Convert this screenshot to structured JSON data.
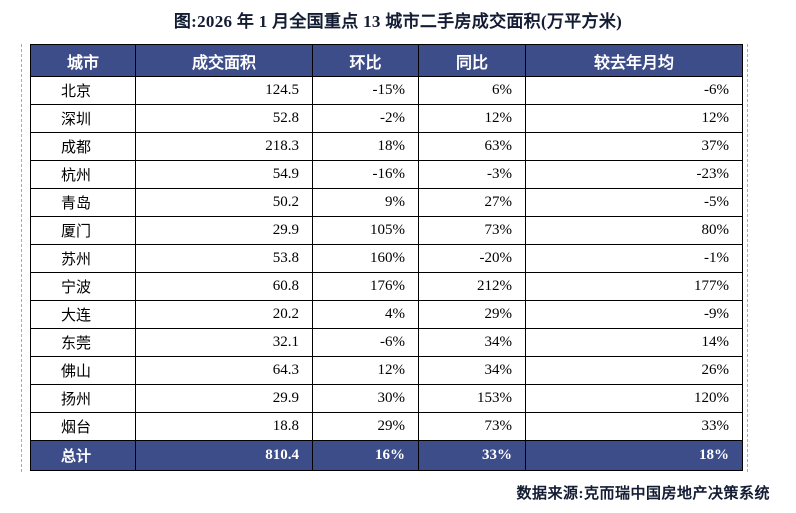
{
  "page": {
    "title": "图:2026 年 1 月全国重点 13 城市二手房成交面积(万平方米)",
    "source": "数据来源:克而瑞中国房地产决策系统"
  },
  "colors": {
    "header_bg": "#3d4d8a",
    "header_text": "#ffffff",
    "title_text": "#131c33",
    "table_border": "#000000",
    "guide_dash": "#a9aab0"
  },
  "table": {
    "headers": [
      "城市",
      "成交面积",
      "环比",
      "同比",
      "较去年月均"
    ],
    "rows": [
      {
        "city": "北京",
        "area": "124.5",
        "mom": "-15%",
        "yoy": "6%",
        "vs_avg": "-6%"
      },
      {
        "city": "深圳",
        "area": "52.8",
        "mom": "-2%",
        "yoy": "12%",
        "vs_avg": "12%"
      },
      {
        "city": "成都",
        "area": "218.3",
        "mom": "18%",
        "yoy": "63%",
        "vs_avg": "37%"
      },
      {
        "city": "杭州",
        "area": "54.9",
        "mom": "-16%",
        "yoy": "-3%",
        "vs_avg": "-23%"
      },
      {
        "city": "青岛",
        "area": "50.2",
        "mom": "9%",
        "yoy": "27%",
        "vs_avg": "-5%"
      },
      {
        "city": "厦门",
        "area": "29.9",
        "mom": "105%",
        "yoy": "73%",
        "vs_avg": "80%"
      },
      {
        "city": "苏州",
        "area": "53.8",
        "mom": "160%",
        "yoy": "-20%",
        "vs_avg": "-1%"
      },
      {
        "city": "宁波",
        "area": "60.8",
        "mom": "176%",
        "yoy": "212%",
        "vs_avg": "177%"
      },
      {
        "city": "大连",
        "area": "20.2",
        "mom": "4%",
        "yoy": "29%",
        "vs_avg": "-9%"
      },
      {
        "city": "东莞",
        "area": "32.1",
        "mom": "-6%",
        "yoy": "34%",
        "vs_avg": "14%"
      },
      {
        "city": "佛山",
        "area": "64.3",
        "mom": "12%",
        "yoy": "34%",
        "vs_avg": "26%"
      },
      {
        "city": "扬州",
        "area": "29.9",
        "mom": "30%",
        "yoy": "153%",
        "vs_avg": "120%"
      },
      {
        "city": "烟台",
        "area": "18.8",
        "mom": "29%",
        "yoy": "73%",
        "vs_avg": "33%"
      }
    ],
    "total": {
      "city": "总计",
      "area": "810.4",
      "mom": "16%",
      "yoy": "33%",
      "vs_avg": "18%"
    }
  }
}
